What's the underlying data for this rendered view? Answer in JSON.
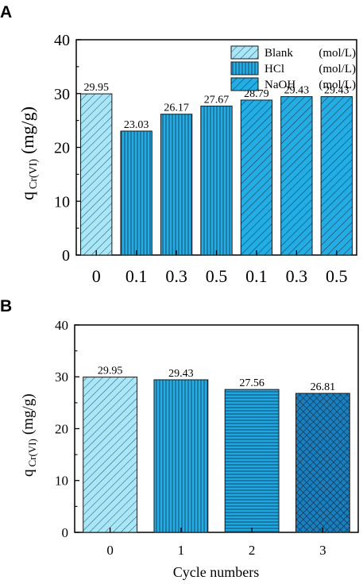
{
  "colors": {
    "light": "#a9e6f7",
    "medium": "#22aee5",
    "dark": "#1a7fbe",
    "hatch": "#1f3b57"
  },
  "chart_data": [
    {
      "panel": "A",
      "type": "bar",
      "ylabel_main": "q",
      "ylabel_sub": "Cr(VI)",
      "ylabel_unit": "(mg/g)",
      "ylim": [
        0,
        40
      ],
      "yticks": [
        0,
        10,
        20,
        30,
        40
      ],
      "categories": [
        "0",
        "0.1",
        "0.3",
        "0.5",
        "0.1",
        "0.3",
        "0.5"
      ],
      "values": [
        29.95,
        23.03,
        26.17,
        27.67,
        28.79,
        29.43,
        29.43
      ],
      "value_labels": [
        "29.95",
        "23.03",
        "26.17",
        "27.67",
        "28.79",
        "29.43",
        "29.43"
      ],
      "groups": [
        "Blank",
        "HCl",
        "HCl",
        "HCl",
        "NaOH",
        "NaOH",
        "NaOH"
      ],
      "legend": [
        {
          "name": "Blank",
          "unit": "(mol/L)",
          "pattern": "diag-light"
        },
        {
          "name": "HCl",
          "unit": "(mol/L)",
          "pattern": "vert-medium"
        },
        {
          "name": "NaOH",
          "unit": "(mol/L)",
          "pattern": "diag-medium"
        }
      ],
      "legend_position": "top-right"
    },
    {
      "panel": "B",
      "type": "bar",
      "xlabel": "Cycle numbers",
      "ylabel_main": "q",
      "ylabel_sub": "Cr(VI)",
      "ylabel_unit": "(mg/g)",
      "ylim": [
        0,
        40
      ],
      "yticks": [
        0,
        10,
        20,
        30,
        40
      ],
      "categories": [
        "0",
        "1",
        "2",
        "3"
      ],
      "values": [
        29.95,
        29.43,
        27.56,
        26.81
      ],
      "value_labels": [
        "29.95",
        "29.43",
        "27.56",
        "26.81"
      ],
      "patterns": [
        "diag-light",
        "vert-medium",
        "horiz-medium",
        "cross-dark"
      ]
    }
  ]
}
